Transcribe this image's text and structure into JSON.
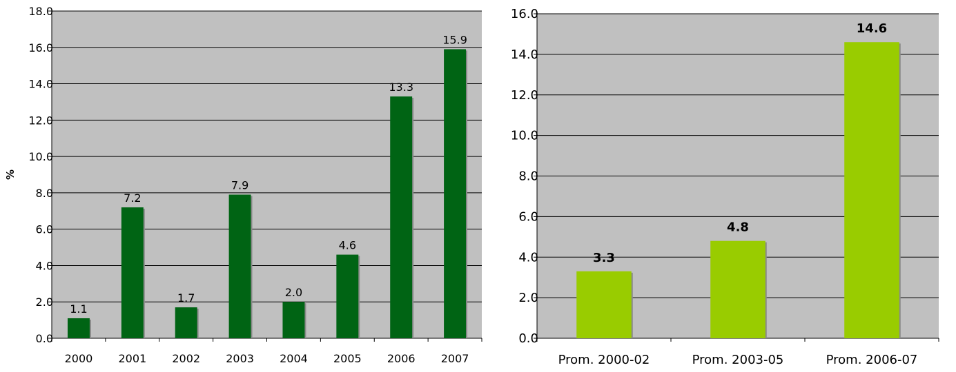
{
  "chart_data": [
    {
      "type": "bar",
      "categories": [
        "2000",
        "2001",
        "2002",
        "2003",
        "2004",
        "2005",
        "2006",
        "2007"
      ],
      "values": [
        1.1,
        7.2,
        1.7,
        7.9,
        2.0,
        4.6,
        13.3,
        15.9
      ],
      "data_labels": [
        "1.1",
        "7.2",
        "1.7",
        "7.9",
        "2.0",
        "4.6",
        "13.3",
        "15.9"
      ],
      "ylabel": "%",
      "ylim": [
        0,
        18
      ],
      "yticks": [
        "0.0",
        "2.0",
        "4.0",
        "6.0",
        "8.0",
        "10.0",
        "12.0",
        "14.0",
        "16.0",
        "18.0"
      ],
      "bar_color": "#006414",
      "background": "#c0c0c0",
      "grid": true
    },
    {
      "type": "bar",
      "categories": [
        "Prom. 2000-02",
        "Prom. 2003-05",
        "Prom. 2006-07"
      ],
      "values": [
        3.3,
        4.8,
        14.6
      ],
      "data_labels": [
        "3.3",
        "4.8",
        "14.6"
      ],
      "ylim": [
        0,
        16
      ],
      "yticks": [
        "0.0",
        "2.0",
        "4.0",
        "6.0",
        "8.0",
        "10.0",
        "12.0",
        "14.0",
        "16.0"
      ],
      "bar_color": "#99cc00",
      "background": "#c0c0c0",
      "grid": true
    }
  ]
}
